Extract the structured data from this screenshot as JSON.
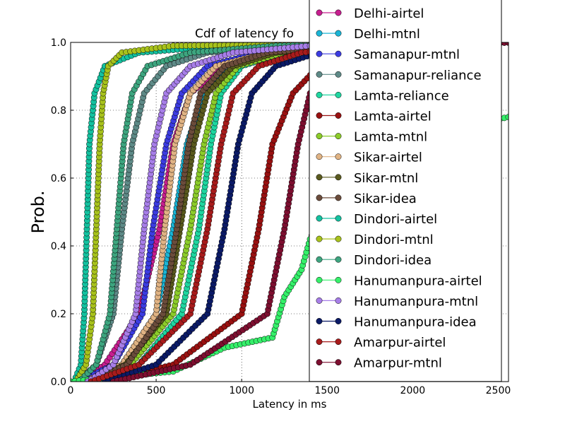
{
  "chart_data": {
    "type": "line",
    "title": "Cdf of latency fo",
    "xlabel": "Latency in ms",
    "ylabel": "Prob.",
    "xlim": [
      0,
      2560
    ],
    "ylim": [
      0.0,
      1.0
    ],
    "xticks": [
      0,
      500,
      1000,
      1500,
      2000,
      2500
    ],
    "xtick_labels": [
      "0",
      "500",
      "1000",
      "1500",
      "2000",
      "2500"
    ],
    "yticks": [
      0.0,
      0.2,
      0.4,
      0.6,
      0.8,
      1.0
    ],
    "ytick_labels": [
      "0.0",
      "0.2",
      "0.4",
      "0.6",
      "0.8",
      "1.0"
    ],
    "grid": true,
    "legend_position": "top-right",
    "series": [
      {
        "name": "Delhi-airtel",
        "color": "#c71e8f",
        "x": [
          60,
          200,
          400,
          520,
          600,
          700,
          900,
          1200,
          1600,
          2560
        ],
        "y": [
          0.0,
          0.05,
          0.2,
          0.45,
          0.7,
          0.85,
          0.93,
          0.97,
          0.99,
          1.0
        ]
      },
      {
        "name": "Delhi-mtnl",
        "color": "#1bb5d6",
        "x": [
          100,
          300,
          500,
          600,
          680,
          780,
          950,
          1300,
          1800,
          2560
        ],
        "y": [
          0.0,
          0.05,
          0.2,
          0.45,
          0.7,
          0.85,
          0.93,
          0.97,
          0.99,
          1.0
        ]
      },
      {
        "name": "Samanapur-mtnl",
        "color": "#3c3ce0",
        "x": [
          50,
          250,
          420,
          480,
          560,
          650,
          800,
          1100,
          1600,
          2560
        ],
        "y": [
          0.0,
          0.05,
          0.2,
          0.45,
          0.7,
          0.85,
          0.93,
          0.97,
          0.99,
          1.0
        ]
      },
      {
        "name": "Samanapur-reliance",
        "color": "#5e8a87",
        "x": [
          40,
          150,
          250,
          300,
          360,
          430,
          560,
          800,
          1300,
          2560
        ],
        "y": [
          0.0,
          0.05,
          0.2,
          0.45,
          0.7,
          0.85,
          0.93,
          0.97,
          0.99,
          1.0
        ]
      },
      {
        "name": "Lamta-reliance",
        "color": "#1fd6a0",
        "x": [
          150,
          400,
          650,
          750,
          820,
          880,
          1000,
          1250,
          1700,
          2560
        ],
        "y": [
          0.0,
          0.05,
          0.2,
          0.45,
          0.7,
          0.85,
          0.93,
          0.97,
          0.99,
          1.0
        ]
      },
      {
        "name": "Lamta-airtel",
        "color": "#991111",
        "x": [
          200,
          600,
          1000,
          1100,
          1180,
          1300,
          1450,
          1700,
          2100,
          2560
        ],
        "y": [
          0.0,
          0.05,
          0.2,
          0.45,
          0.7,
          0.85,
          0.93,
          0.97,
          0.99,
          1.0
        ]
      },
      {
        "name": "Lamta-mtnl",
        "color": "#8ccc2a",
        "x": [
          120,
          350,
          600,
          700,
          780,
          850,
          980,
          1250,
          1700,
          2560
        ],
        "y": [
          0.0,
          0.05,
          0.2,
          0.45,
          0.7,
          0.85,
          0.93,
          0.97,
          0.99,
          1.0
        ]
      },
      {
        "name": "Sikar-airtel",
        "color": "#e0b384",
        "x": [
          80,
          300,
          500,
          550,
          610,
          700,
          850,
          1150,
          1600,
          2560
        ],
        "y": [
          0.0,
          0.05,
          0.2,
          0.45,
          0.7,
          0.85,
          0.93,
          0.97,
          0.99,
          1.0
        ]
      },
      {
        "name": "Sikar-mtnl",
        "color": "#5a5a1e",
        "x": [
          90,
          320,
          560,
          640,
          720,
          800,
          950,
          1200,
          1700,
          2560
        ],
        "y": [
          0.0,
          0.05,
          0.2,
          0.45,
          0.7,
          0.85,
          0.93,
          0.97,
          0.99,
          1.0
        ]
      },
      {
        "name": "Sikar-idea",
        "color": "#6b4c3b",
        "x": [
          110,
          330,
          540,
          620,
          690,
          760,
          900,
          1150,
          1600,
          2560
        ],
        "y": [
          0.0,
          0.05,
          0.2,
          0.45,
          0.7,
          0.85,
          0.93,
          0.97,
          0.99,
          1.0
        ]
      },
      {
        "name": "Dindori-airtel",
        "color": "#14c2a0",
        "x": [
          20,
          60,
          80,
          95,
          110,
          140,
          200,
          400,
          900,
          2560
        ],
        "y": [
          0.0,
          0.05,
          0.2,
          0.45,
          0.7,
          0.85,
          0.93,
          0.97,
          0.99,
          1.0
        ]
      },
      {
        "name": "Dindori-mtnl",
        "color": "#a8c21c",
        "x": [
          30,
          90,
          130,
          150,
          170,
          190,
          220,
          300,
          600,
          2560
        ],
        "y": [
          0.0,
          0.05,
          0.2,
          0.45,
          0.7,
          0.85,
          0.93,
          0.97,
          0.99,
          1.0
        ]
      },
      {
        "name": "Dindori-idea",
        "color": "#3da57f",
        "x": [
          50,
          150,
          230,
          270,
          310,
          360,
          450,
          700,
          1200,
          2560
        ],
        "y": [
          0.0,
          0.05,
          0.2,
          0.45,
          0.7,
          0.85,
          0.93,
          0.97,
          0.99,
          1.0
        ]
      },
      {
        "name": "Hanumanpura-airtel",
        "color": "#35f06a",
        "x": [
          0,
          600,
          900,
          1180,
          1250,
          1350,
          1400,
          1600,
          2000,
          2560
        ],
        "y": [
          0.0,
          0.03,
          0.1,
          0.13,
          0.25,
          0.33,
          0.42,
          0.65,
          0.72,
          0.78
        ]
      },
      {
        "name": "Hanumanpura-mtnl",
        "color": "#a77ee8",
        "x": [
          100,
          250,
          380,
          430,
          490,
          560,
          700,
          950,
          1400,
          2560
        ],
        "y": [
          0.0,
          0.05,
          0.2,
          0.45,
          0.7,
          0.85,
          0.93,
          0.97,
          0.99,
          1.0
        ]
      },
      {
        "name": "Hanumanpura-idea",
        "color": "#0b1a66",
        "x": [
          200,
          500,
          800,
          900,
          980,
          1060,
          1200,
          1450,
          1900,
          2560
        ],
        "y": [
          0.0,
          0.05,
          0.2,
          0.45,
          0.7,
          0.85,
          0.93,
          0.97,
          0.99,
          1.0
        ]
      },
      {
        "name": "Amarpur-airtel",
        "color": "#a81c1c",
        "x": [
          120,
          400,
          700,
          800,
          880,
          950,
          1100,
          1350,
          1800,
          2560
        ],
        "y": [
          0.0,
          0.05,
          0.2,
          0.45,
          0.7,
          0.85,
          0.93,
          0.97,
          0.99,
          1.0
        ]
      },
      {
        "name": "Amarpur-mtnl",
        "color": "#7d0f30",
        "x": [
          250,
          700,
          1150,
          1250,
          1330,
          1400,
          1550,
          1800,
          2200,
          2560
        ],
        "y": [
          0.0,
          0.05,
          0.2,
          0.45,
          0.7,
          0.85,
          0.93,
          0.97,
          0.99,
          1.0
        ]
      }
    ]
  }
}
